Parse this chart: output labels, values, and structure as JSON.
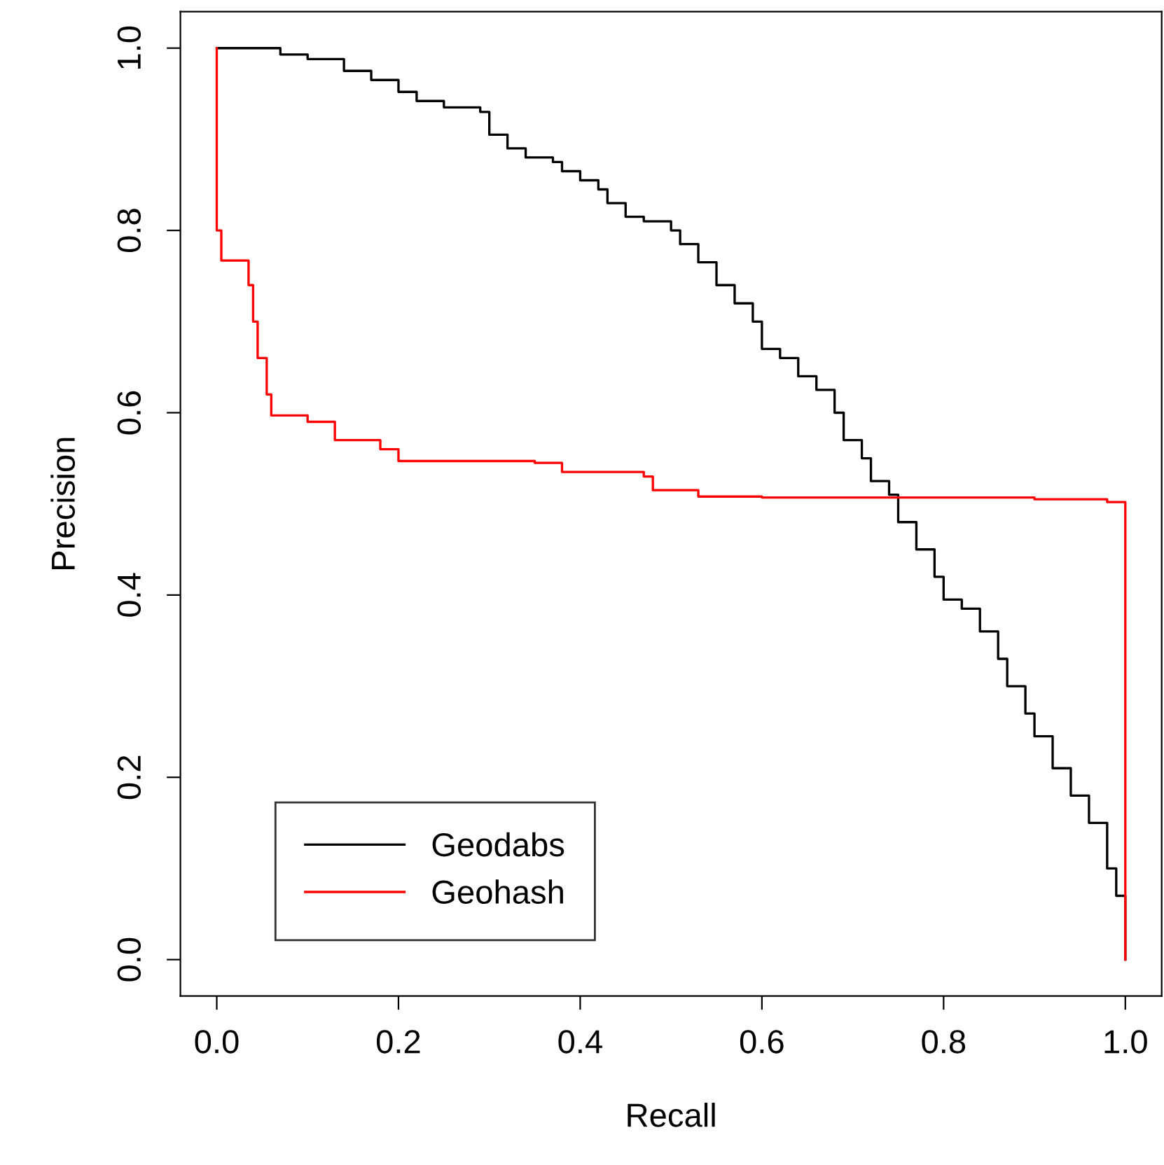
{
  "chart_data": {
    "type": "step",
    "xlabel": "Recall",
    "ylabel": "Precision",
    "xlim": [
      -0.04,
      1.04
    ],
    "ylim": [
      -0.04,
      1.04
    ],
    "xticks": [
      {
        "value": 0,
        "label": "0.0"
      },
      0.2,
      0.4,
      0.6,
      0.8,
      {
        "value": 1,
        "label": "1.0"
      }
    ],
    "yticks": [
      {
        "value": 0,
        "label": "0.0"
      },
      0.2,
      0.4,
      0.6,
      0.8,
      {
        "value": 1,
        "label": "1.0"
      }
    ],
    "grid": false,
    "legend": "bottom left",
    "line_style": "solid",
    "marker": "none",
    "series": [
      {
        "name": "Geodabs",
        "color": "#000000",
        "x": [
          0,
          0.07,
          0.1,
          0.14,
          0.17,
          0.2,
          0.22,
          0.25,
          0.29,
          0.3,
          0.32,
          0.34,
          0.37,
          0.38,
          0.4,
          0.42,
          0.43,
          0.45,
          0.47,
          0.5,
          0.51,
          0.53,
          0.55,
          0.57,
          0.59,
          0.6,
          0.62,
          0.64,
          0.66,
          0.68,
          0.69,
          0.71,
          0.72,
          0.74,
          0.75,
          0.77,
          0.79,
          0.8,
          0.82,
          0.84,
          0.86,
          0.87,
          0.89,
          0.9,
          0.92,
          0.94,
          0.96,
          0.98,
          0.99,
          1.0
        ],
        "values": [
          1.0,
          0.993,
          0.988,
          0.975,
          0.965,
          0.952,
          0.942,
          0.935,
          0.93,
          0.905,
          0.89,
          0.88,
          0.875,
          0.865,
          0.855,
          0.845,
          0.83,
          0.815,
          0.81,
          0.8,
          0.785,
          0.765,
          0.74,
          0.72,
          0.7,
          0.67,
          0.66,
          0.64,
          0.625,
          0.6,
          0.57,
          0.55,
          0.525,
          0.51,
          0.48,
          0.45,
          0.42,
          0.395,
          0.385,
          0.36,
          0.33,
          0.3,
          0.27,
          0.245,
          0.21,
          0.18,
          0.15,
          0.1,
          0.07,
          0.0
        ]
      },
      {
        "name": "Geohash",
        "color": "#ff0000",
        "x": [
          0,
          0,
          0.005,
          0.03,
          0.035,
          0.04,
          0.045,
          0.055,
          0.06,
          0.1,
          0.13,
          0.18,
          0.2,
          0.35,
          0.38,
          0.47,
          0.48,
          0.53,
          0.6,
          0.9,
          0.98,
          1.0,
          1.0
        ],
        "values": [
          1.0,
          0.8,
          0.767,
          0.767,
          0.74,
          0.7,
          0.66,
          0.62,
          0.597,
          0.59,
          0.57,
          0.56,
          0.547,
          0.545,
          0.535,
          0.53,
          0.515,
          0.508,
          0.507,
          0.505,
          0.502,
          0.5,
          0.0
        ]
      }
    ]
  }
}
